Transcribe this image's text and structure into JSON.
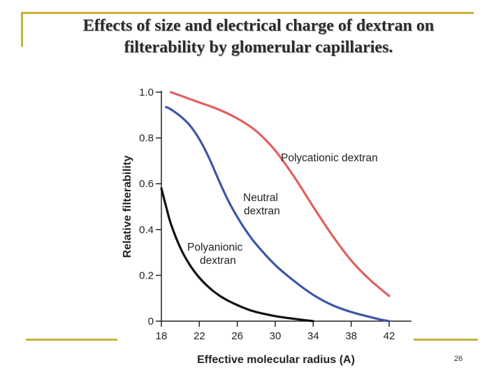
{
  "slide": {
    "title_line1": "Effects of size and electrical charge of dextran on",
    "title_line2": "filterability by glomerular capillaries.",
    "page_number": "26",
    "accent_color": "#c9b13a"
  },
  "chart_data": {
    "type": "line",
    "title": "",
    "xlabel": "Effective molecular radius (A)",
    "ylabel": "Relative filterability",
    "xlim": [
      18,
      42
    ],
    "ylim": [
      0,
      1.0
    ],
    "x_ticks": [
      "18",
      "22",
      "26",
      "30",
      "34",
      "38",
      "42"
    ],
    "y_ticks": [
      "0",
      "0.2",
      "0.4",
      "0.6",
      "0.8",
      "1.0"
    ],
    "grid": false,
    "series": [
      {
        "name": "Polycationic dextran",
        "annotation": [
          "Polycationic dextran"
        ],
        "color": "#e06060",
        "x": [
          19,
          20,
          22,
          24,
          26,
          28,
          30,
          32,
          34,
          36,
          38,
          40,
          42
        ],
        "y": [
          1.0,
          0.985,
          0.955,
          0.925,
          0.885,
          0.83,
          0.745,
          0.63,
          0.5,
          0.375,
          0.265,
          0.18,
          0.11
        ]
      },
      {
        "name": "Neutral dextran",
        "annotation": [
          "Neutral",
          "dextran"
        ],
        "color": "#3d56a6",
        "x": [
          18.5,
          19,
          20,
          21,
          22,
          23,
          24,
          25,
          26,
          27,
          28,
          30,
          32,
          34,
          36,
          38,
          40,
          41,
          42
        ],
        "y": [
          0.935,
          0.925,
          0.895,
          0.855,
          0.795,
          0.715,
          0.62,
          0.53,
          0.455,
          0.39,
          0.335,
          0.245,
          0.175,
          0.115,
          0.07,
          0.04,
          0.018,
          0.008,
          0.0
        ]
      },
      {
        "name": "Polyanionic dextran",
        "annotation": [
          "Polyanionic",
          "dextran"
        ],
        "color": "#111111",
        "x": [
          18,
          18.5,
          19,
          20,
          21,
          22,
          23,
          24,
          25,
          26,
          27,
          28,
          30,
          32,
          33,
          34
        ],
        "y": [
          0.58,
          0.5,
          0.425,
          0.32,
          0.245,
          0.19,
          0.148,
          0.115,
          0.09,
          0.07,
          0.053,
          0.04,
          0.022,
          0.01,
          0.005,
          0.0
        ]
      }
    ]
  }
}
